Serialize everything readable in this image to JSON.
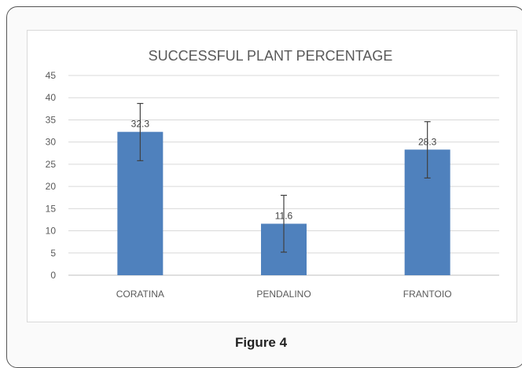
{
  "chart_data": {
    "type": "bar",
    "title": "SUCCESSFUL PLANT PERCENTAGE",
    "xlabel": "",
    "ylabel": "",
    "categories": [
      "CORATINA",
      "PENDALINO",
      "FRANTOIO"
    ],
    "values": [
      32.3,
      11.6,
      28.3
    ],
    "error_bars": [
      {
        "low": 25.8,
        "high": 38.7
      },
      {
        "low": 5.2,
        "high": 18.0
      },
      {
        "low": 21.9,
        "high": 34.6
      }
    ],
    "data_labels": [
      "32.3",
      "11.6",
      "28.3"
    ],
    "ylim": [
      0,
      45
    ],
    "yticks": [
      0,
      5,
      10,
      15,
      20,
      25,
      30,
      35,
      40,
      45
    ],
    "grid": true,
    "legend": "none",
    "bar_color": "#4f81bd"
  },
  "caption": "Figure 4"
}
